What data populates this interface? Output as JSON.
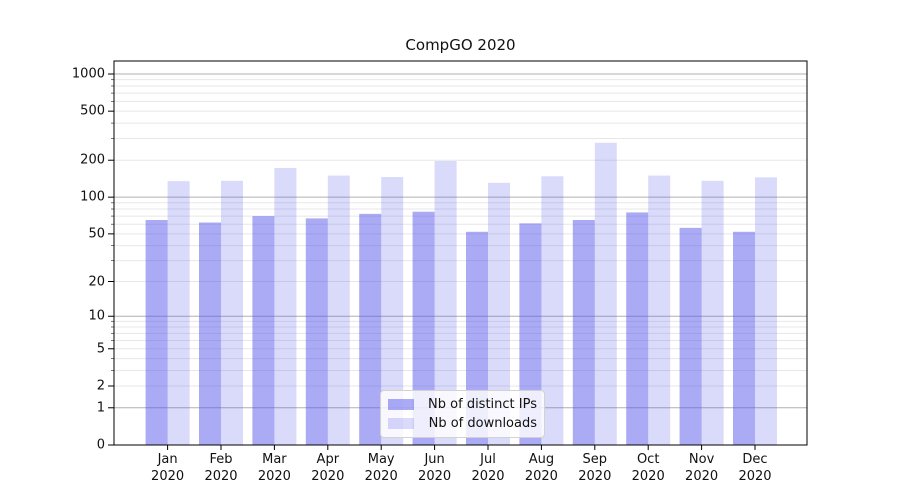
{
  "chart_data": {
    "type": "bar",
    "title": "CompGO 2020",
    "categories": [
      "Jan 2020",
      "Feb 2020",
      "Mar 2020",
      "Apr 2020",
      "May 2020",
      "Jun 2020",
      "Jul 2020",
      "Aug 2020",
      "Sep 2020",
      "Oct 2020",
      "Nov 2020",
      "Dec 2020"
    ],
    "series": [
      {
        "name": "Nb of distinct IPs",
        "color": "rgba(85,85,235,0.5)",
        "values": [
          65,
          62,
          70,
          67,
          73,
          76,
          52,
          61,
          65,
          75,
          56,
          52
        ]
      },
      {
        "name": "Nb of downloads",
        "color": "rgba(85,85,235,0.22)",
        "values": [
          135,
          136,
          173,
          150,
          146,
          197,
          131,
          148,
          277,
          150,
          136,
          145
        ]
      }
    ],
    "xlabel": "",
    "ylabel": "",
    "yscale": "log1p",
    "ylim": [
      0,
      1274
    ],
    "yticks": [
      1000,
      500,
      200,
      100,
      50,
      20,
      10,
      5,
      2,
      1,
      0
    ],
    "grid": true,
    "legend_position": "lower center"
  },
  "colors": {
    "grid_major": "#b0b0b0",
    "grid_minor": "#e7e7e7",
    "axis": "#000000",
    "text": "#111111"
  }
}
